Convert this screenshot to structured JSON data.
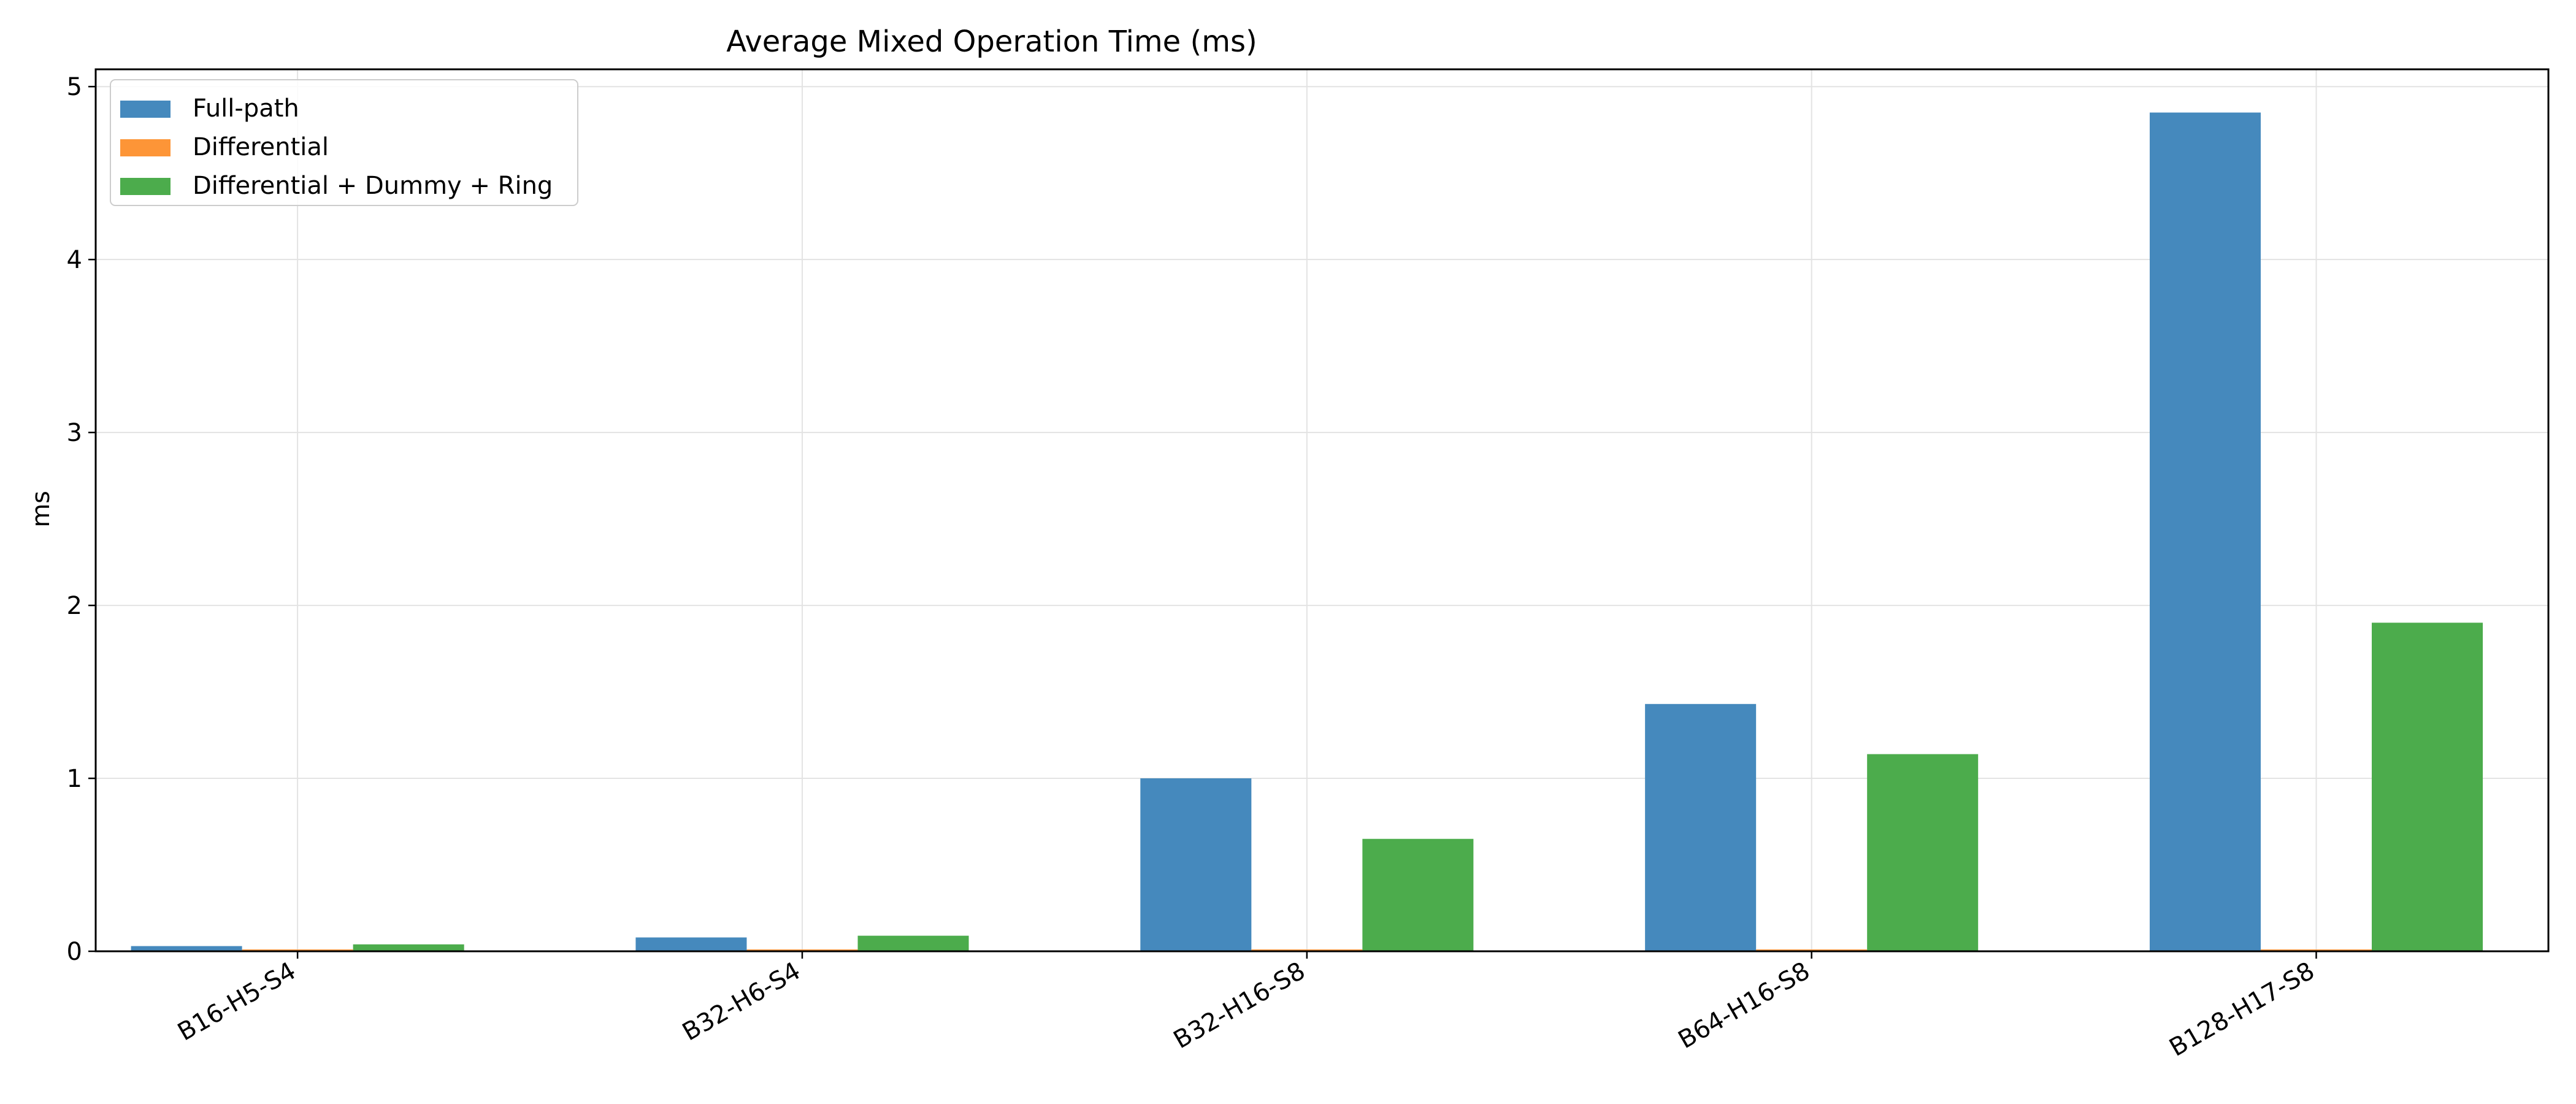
{
  "chart_data": {
    "type": "bar",
    "title": "Average Mixed Operation Time (ms)",
    "xlabel": "",
    "ylabel": "ms",
    "ylim": [
      0,
      5.1
    ],
    "yticks": [
      0,
      1,
      2,
      3,
      4,
      5
    ],
    "grid": true,
    "legend_position": "top-left",
    "categories": [
      "B16-H5-S4",
      "B32-H6-S4",
      "B32-H16-S8",
      "B64-H16-S8",
      "B128-H17-S8"
    ],
    "series": [
      {
        "name": "Full-path",
        "color": "#4589bd",
        "values": [
          0.03,
          0.08,
          1.0,
          1.43,
          4.85
        ]
      },
      {
        "name": "Differential",
        "color": "#fd9537",
        "values": [
          0.01,
          0.01,
          0.01,
          0.01,
          0.01
        ]
      },
      {
        "name": "Differential + Dummy + Ring",
        "color": "#4cac4c",
        "values": [
          0.04,
          0.09,
          0.65,
          1.14,
          1.9
        ]
      }
    ]
  }
}
